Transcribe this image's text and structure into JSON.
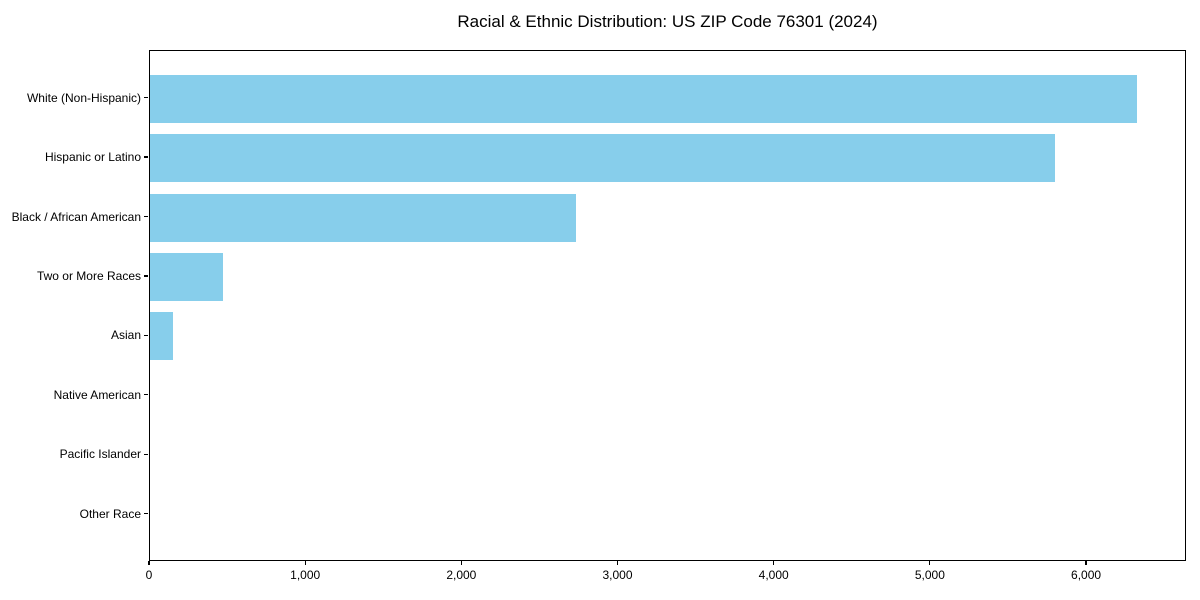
{
  "chart_data": {
    "type": "bar",
    "orientation": "horizontal",
    "title": "Racial & Ethnic Distribution: US ZIP Code 76301 (2024)",
    "categories": [
      "White (Non-Hispanic)",
      "Hispanic or Latino",
      "Black / African American",
      "Two or More Races",
      "Asian",
      "Native American",
      "Pacific Islander",
      "Other Race"
    ],
    "values": [
      6320,
      5795,
      2730,
      470,
      150,
      0,
      0,
      0
    ],
    "xlabel": "",
    "ylabel": "",
    "xlim": [
      0,
      6640
    ],
    "x_ticks": [
      0,
      1000,
      2000,
      3000,
      4000,
      5000,
      6000
    ],
    "x_tick_labels": [
      "0",
      "1,000",
      "2,000",
      "3,000",
      "4,000",
      "5,000",
      "6,000"
    ],
    "bar_color": "#87CEEB",
    "text_color": "#000000",
    "background_color": "#ffffff",
    "grid": false,
    "legend": null
  }
}
